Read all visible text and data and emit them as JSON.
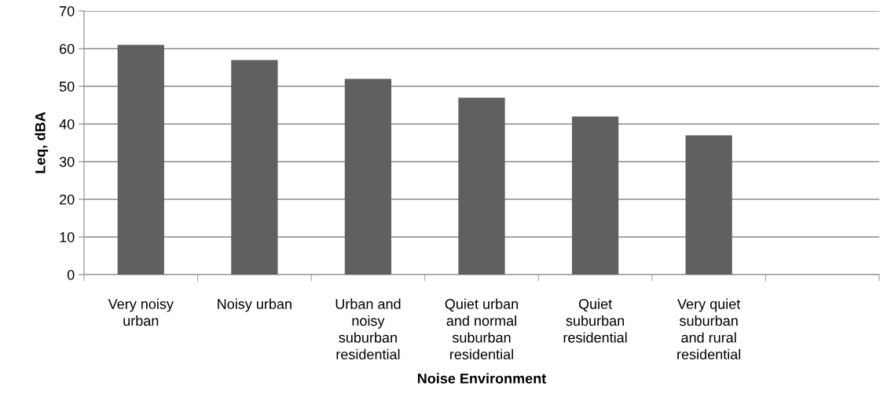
{
  "chart_data": {
    "type": "bar",
    "xlabel": "Noise Environment",
    "ylabel": "Leq, dBA",
    "categories": [
      "Very noisy\nurban",
      "Noisy urban",
      "Urban and\nnoisy\nsuburban\nresidential",
      "Quiet urban\nand normal\nsuburban\nresidential",
      "Quiet\nsuburban\nresidential",
      "Very quiet\nsuburban\nand rural\nresidential",
      null
    ],
    "values": [
      61,
      57,
      52,
      47,
      42,
      37,
      null
    ],
    "color": "#606060",
    "ylim": [
      0,
      70
    ],
    "yticks": [
      0,
      10,
      20,
      30,
      40,
      50,
      60,
      70
    ],
    "grid": "y",
    "legend": false
  }
}
